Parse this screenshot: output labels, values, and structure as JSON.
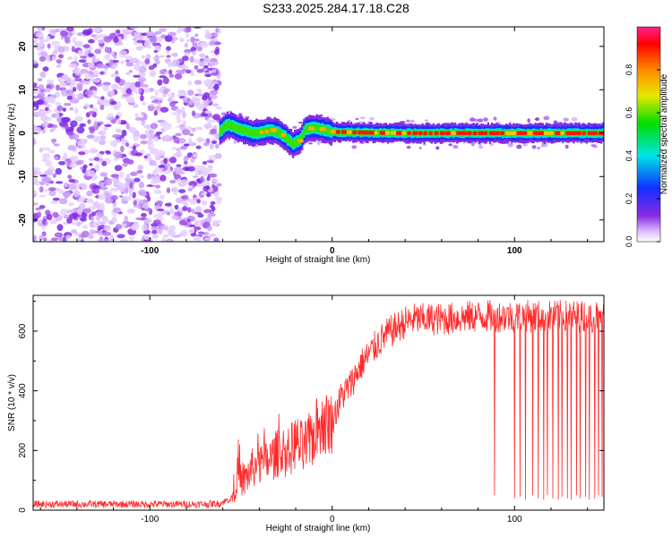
{
  "title": "S233.2025.284.17.18.C28",
  "colors": {
    "snr_line": "#ff2a2a",
    "axis": "#000000",
    "spectral_low": "#8b2be2",
    "spectral_mid": "#00e5d8",
    "spectral_high": "#ff0000"
  },
  "chart_data": [
    {
      "type": "heatmap",
      "title": "",
      "xlabel": "Height of straight line (km)",
      "ylabel": "Frequency (Hz)",
      "xlim": [
        -164,
        149
      ],
      "ylim": [
        -25,
        24.5
      ],
      "x_ticks": [
        -100,
        0,
        100
      ],
      "y_ticks": [
        -20,
        -10,
        0,
        10,
        20
      ],
      "colorbar": {
        "label": "Normalized spectral amplitude",
        "range": [
          0,
          1
        ],
        "ticks": [
          0.0,
          0.2,
          0.4,
          0.6,
          0.8
        ],
        "colormap": "rainbow (magenta-blue-cyan-green-yellow-red)"
      },
      "regions": [
        {
          "x_range": [
            -164,
            -62
          ],
          "description": "broadband noise, amplitude 0.0-0.25"
        },
        {
          "x_range": [
            -62,
            149
          ],
          "description": "narrow band near 0 Hz, amplitude up to ~1.0"
        }
      ],
      "ridge": {
        "x": [
          -62,
          -58,
          -50,
          -44,
          -38,
          -34,
          -30,
          -26,
          -22,
          -18,
          -15,
          -10,
          -5,
          0,
          20,
          40,
          60,
          80,
          100,
          120,
          149
        ],
        "y": [
          0.5,
          2.0,
          0.8,
          0.0,
          0.3,
          0.7,
          0.2,
          -1.0,
          -2.5,
          -1.5,
          1.0,
          1.2,
          0.8,
          0.3,
          0.1,
          0.0,
          0.0,
          0.0,
          0.0,
          0.0,
          0.0
        ]
      }
    },
    {
      "type": "line",
      "title": "",
      "xlabel": "Height of straight line (km)",
      "ylabel": "SNR (10 * v/v)",
      "xlim": [
        -164,
        149
      ],
      "ylim": [
        0,
        720
      ],
      "x_ticks": [
        -100,
        0,
        100
      ],
      "y_ticks": [
        0,
        200,
        400,
        600
      ],
      "series": [
        {
          "x": [
            -164,
            -150,
            -130,
            -110,
            -90,
            -70,
            -62,
            -55,
            -52,
            -48,
            -44,
            -40,
            -36,
            -32,
            -28,
            -24,
            -20,
            -16,
            -12,
            -8,
            -4,
            0,
            5,
            10,
            15,
            20,
            25,
            30,
            35,
            40,
            45,
            50,
            55,
            60,
            70,
            80,
            90,
            100,
            110,
            120,
            130,
            140,
            149
          ],
          "values": [
            20,
            20,
            20,
            20,
            20,
            20,
            22,
            40,
            120,
            100,
            140,
            150,
            160,
            180,
            200,
            190,
            230,
            200,
            230,
            280,
            290,
            300,
            380,
            420,
            480,
            520,
            560,
            590,
            610,
            630,
            640,
            640,
            640,
            640,
            645,
            650,
            650,
            650,
            650,
            650,
            650,
            650,
            650
          ]
        }
      ],
      "dropouts": {
        "x": [
          89,
          100,
          103,
          106,
          110,
          113,
          116,
          118,
          121,
          124,
          126,
          129,
          131,
          134,
          136,
          139,
          141,
          144,
          146,
          148
        ],
        "values": [
          50,
          40,
          45,
          35,
          50,
          40,
          35,
          50,
          40,
          35,
          45,
          40,
          35,
          50,
          40,
          45,
          35,
          40,
          50,
          45
        ]
      }
    }
  ]
}
